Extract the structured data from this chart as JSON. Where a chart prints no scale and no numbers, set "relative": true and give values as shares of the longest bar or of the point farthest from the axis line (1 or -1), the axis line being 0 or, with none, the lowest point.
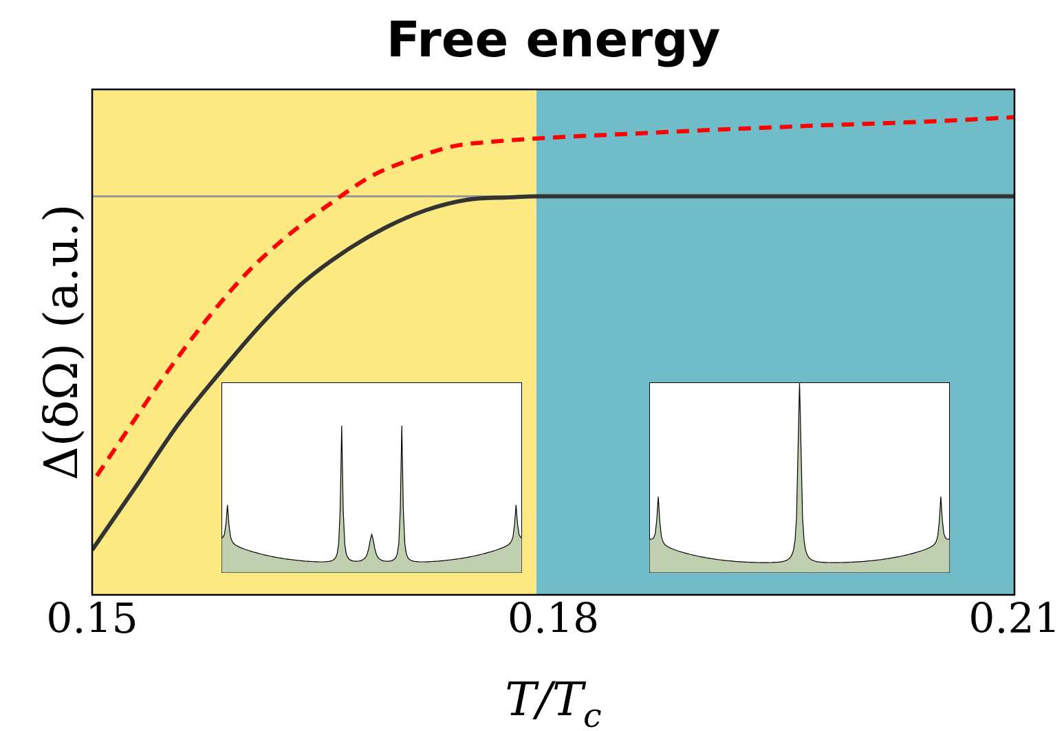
{
  "chart_data": {
    "type": "line",
    "title": "Free energy",
    "xlabel": "T/T$_{c}$",
    "ylabel": "Δ(δΩ) (a.u.)",
    "relative": true,
    "legend": false,
    "xlim": [
      0.15,
      0.21
    ],
    "xticks": [
      0.15,
      0.18,
      0.21
    ],
    "bands": [
      {
        "axis": "x",
        "from": 0.15,
        "to": 0.1789,
        "color": "#fde981"
      },
      {
        "axis": "x",
        "from": 0.1789,
        "to": 0.21,
        "color": "#70bcc8"
      }
    ],
    "ref_lines": [
      {
        "axis": "y",
        "value": 0.834,
        "color": "#999999"
      }
    ],
    "series": [
      {
        "color": "#ff0000",
        "line_style": "dashed",
        "x": [
          0.1503,
          0.1521,
          0.1547,
          0.1574,
          0.1601,
          0.1628,
          0.1655,
          0.1682,
          0.1709,
          0.1735,
          0.1762,
          0.1798,
          0.1843,
          0.1888,
          0.1932,
          0.1977,
          0.2022,
          0.2066,
          0.21
        ],
        "values": [
          0.249,
          0.335,
          0.458,
          0.574,
          0.675,
          0.754,
          0.819,
          0.877,
          0.913,
          0.939,
          0.949,
          0.957,
          0.964,
          0.971,
          0.977,
          0.983,
          0.988,
          0.994,
          1
        ]
      },
      {
        "color": "#333333",
        "line_style": "solid",
        "x": [
          0.15,
          0.153,
          0.1556,
          0.1583,
          0.161,
          0.1637,
          0.1664,
          0.1691,
          0.1717,
          0.1744,
          0.1771,
          0.1789,
          0.21
        ],
        "values": [
          0.094,
          0.234,
          0.357,
          0.465,
          0.566,
          0.653,
          0.718,
          0.769,
          0.805,
          0.827,
          0.832,
          0.834,
          0.834
        ]
      }
    ]
  }
}
